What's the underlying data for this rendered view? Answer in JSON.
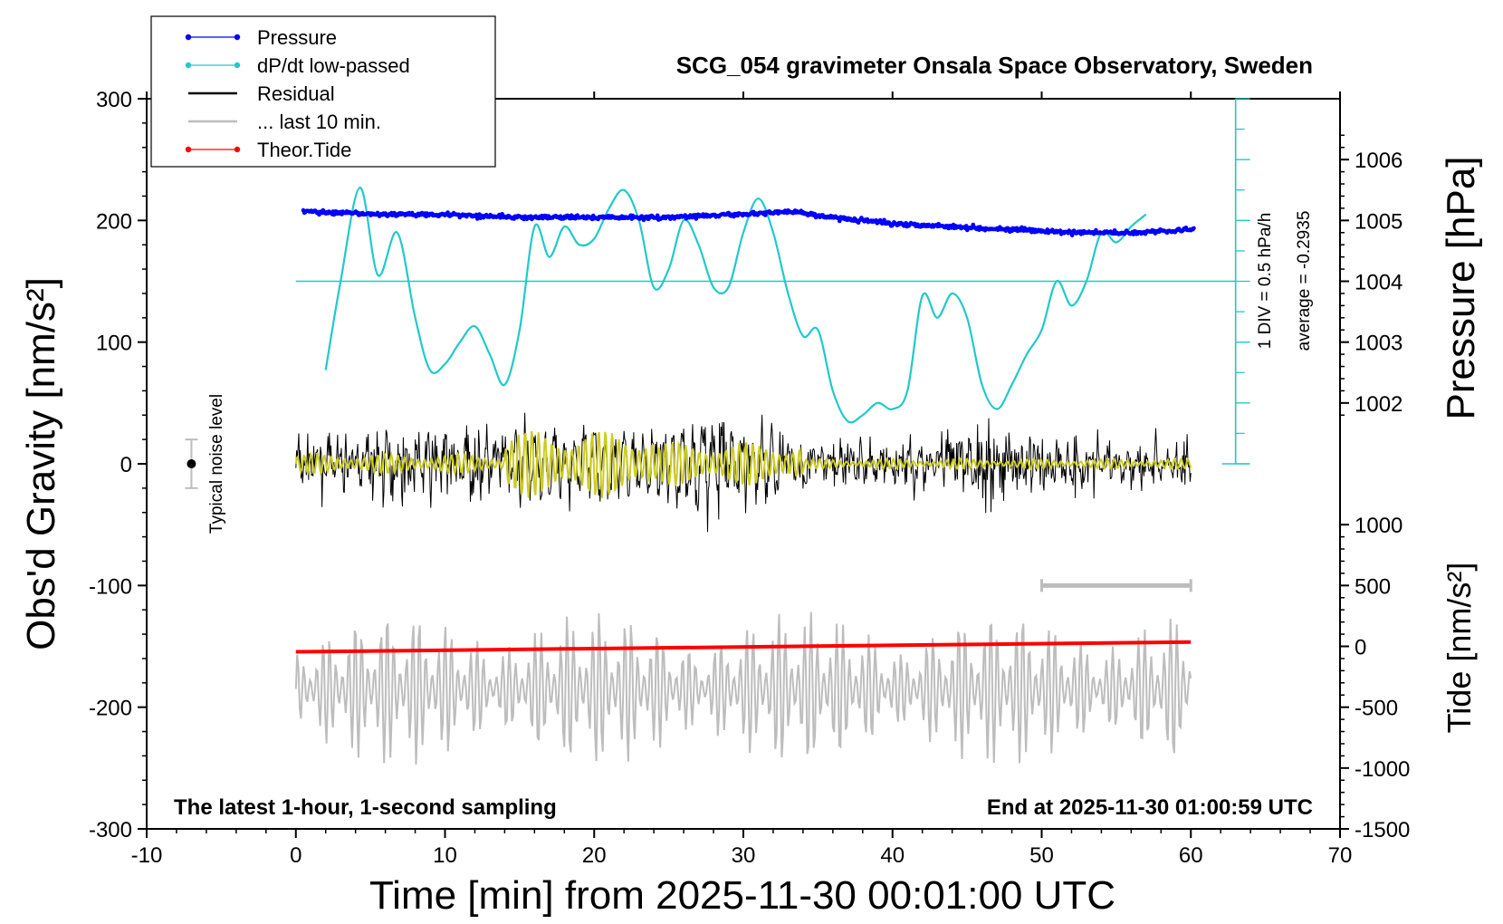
{
  "chart_data": {
    "type": "line",
    "title": "SCG_054 gravimeter Onsala Space Observatory, Sweden",
    "xlabel": "Time [min] from 2025-11-30 00:01:00 UTC",
    "ylabel_left": "Obs'd Gravity [nm/s²]",
    "ylabel_pressure": "Pressure [hPa]",
    "ylabel_tide": "Tide [nm/s²]",
    "xlim": [
      -10,
      70
    ],
    "ylim": [
      -300,
      300
    ],
    "x_ticks": [
      "-10",
      "0",
      "10",
      "20",
      "30",
      "40",
      "50",
      "60",
      "70"
    ],
    "y_ticks": [
      "-300",
      "-200",
      "-100",
      "0",
      "100",
      "200",
      "300"
    ],
    "pressure_ticks": [
      "1002",
      "1003",
      "1004",
      "1005",
      "1006"
    ],
    "tide_ticks": [
      "-1500",
      "-1000",
      "-500",
      "0",
      "500",
      "1000"
    ],
    "legend_position": "top-left",
    "legend": [
      {
        "label": "Pressure",
        "color": "#0000ff"
      },
      {
        "label": "dP/dt low-passed",
        "color": "#21c9c9"
      },
      {
        "label": "Residual",
        "color": "#000000"
      },
      {
        "label": "... last 10 min.",
        "color": "#bdbdbd"
      },
      {
        "label": "Theor.Tide",
        "color": "#ff0000"
      }
    ],
    "annotations": {
      "noise": "Typical noise level",
      "div": "1 DIV = 0.5 hPa/h",
      "average": "average = -0.2935",
      "footer_left": "The latest 1-hour, 1-second sampling",
      "footer_right": "End at 2025-11-30 01:00:59 UTC"
    },
    "series": [
      {
        "name": "Pressure",
        "axis": "pressure",
        "x": [
          0.5,
          5,
          10,
          15,
          20,
          25,
          30,
          33,
          36,
          40,
          44,
          48,
          52,
          56,
          60
        ],
        "y": [
          1005.15,
          1005.1,
          1005.1,
          1005.05,
          1005.05,
          1005.05,
          1005.1,
          1005.15,
          1005.05,
          1004.95,
          1004.9,
          1004.85,
          1004.8,
          1004.8,
          1004.85
        ]
      },
      {
        "name": "dP/dt low-passed",
        "axis": "left",
        "x": [
          2,
          3,
          4.3,
          5.5,
          6.8,
          8,
          9,
          10,
          11,
          12,
          13,
          14,
          15,
          16,
          17,
          18,
          19,
          20,
          21,
          22,
          23,
          24,
          25,
          26,
          27,
          28,
          29,
          30,
          31,
          32,
          33,
          34,
          35,
          36,
          37,
          38,
          39,
          40,
          41,
          42,
          43,
          44,
          45,
          46,
          47,
          48,
          49,
          50,
          51,
          52,
          53,
          54,
          55,
          56,
          57
        ],
        "y": [
          77,
          150,
          227,
          155,
          190,
          120,
          77,
          82,
          100,
          113,
          90,
          65,
          110,
          195,
          170,
          195,
          180,
          185,
          210,
          225,
          200,
          145,
          160,
          200,
          180,
          145,
          145,
          190,
          218,
          190,
          140,
          105,
          110,
          60,
          35,
          40,
          50,
          45,
          60,
          138,
          120,
          140,
          120,
          65,
          45,
          65,
          90,
          110,
          150,
          130,
          150,
          190,
          182,
          195,
          205
        ]
      },
      {
        "name": "Residual",
        "axis": "left",
        "x_range": [
          0,
          60
        ],
        "amplitude": 90
      },
      {
        "name": "... last 10 min.",
        "axis": "left",
        "x_range": [
          0,
          60
        ],
        "baseline": -185,
        "amplitude": 65
      },
      {
        "name": "Theor.Tide",
        "axis": "tide",
        "x": [
          0,
          60
        ],
        "y": [
          -45,
          35
        ]
      }
    ],
    "noise_bar": {
      "x": -7,
      "y_center": 0,
      "y_range": [
        -20,
        20
      ]
    },
    "ten_min_bar": {
      "x": [
        50,
        60
      ],
      "y": 500
    },
    "dpdt_axis": {
      "x": 63,
      "zero_y": 0,
      "top_y": 300
    },
    "dpdt_average_line": 150
  }
}
